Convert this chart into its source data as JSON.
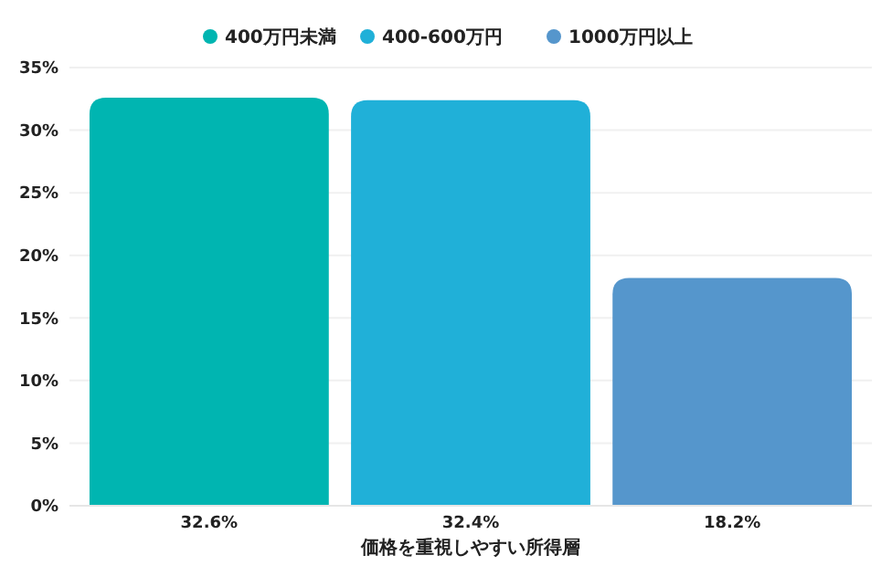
{
  "chart_data": {
    "type": "bar",
    "xlabel": "価格を重視しやすい所得層",
    "categories": [
      null
    ],
    "series": [
      {
        "name": "400万円未満",
        "color": "#00b5b1",
        "values": [
          32.6
        ],
        "value_labels": [
          "32.6%"
        ]
      },
      {
        "name": "400-600万円",
        "color": "#20b0d8",
        "values": [
          32.4
        ],
        "value_labels": [
          "32.4%"
        ]
      },
      {
        "name": "1000万円以上",
        "color": "#5596cc",
        "values": [
          18.2
        ],
        "value_labels": [
          "18.2%"
        ]
      }
    ],
    "ylim": [
      0,
      35
    ],
    "yticks": [
      {
        "value": 0,
        "label": "0%"
      },
      {
        "value": 5,
        "label": "5%"
      },
      {
        "value": 10,
        "label": "10%"
      },
      {
        "value": 15,
        "label": "15%"
      },
      {
        "value": 20,
        "label": "20%"
      },
      {
        "value": 25,
        "label": "25%"
      },
      {
        "value": 30,
        "label": "30%"
      },
      {
        "value": 35,
        "label": "35%"
      }
    ],
    "grid": "y",
    "legend": "top"
  }
}
